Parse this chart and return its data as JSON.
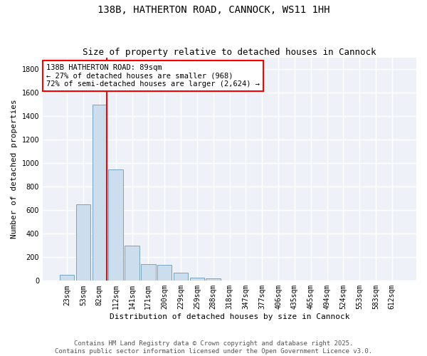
{
  "title": "138B, HATHERTON ROAD, CANNOCK, WS11 1HH",
  "subtitle": "Size of property relative to detached houses in Cannock",
  "xlabel": "Distribution of detached houses by size in Cannock",
  "ylabel": "Number of detached properties",
  "categories": [
    "23sqm",
    "53sqm",
    "82sqm",
    "112sqm",
    "141sqm",
    "171sqm",
    "200sqm",
    "229sqm",
    "259sqm",
    "288sqm",
    "318sqm",
    "347sqm",
    "377sqm",
    "406sqm",
    "435sqm",
    "465sqm",
    "494sqm",
    "524sqm",
    "553sqm",
    "583sqm",
    "612sqm"
  ],
  "values": [
    50,
    650,
    1500,
    950,
    300,
    140,
    135,
    70,
    25,
    20,
    5,
    2,
    2,
    1,
    1,
    1,
    1,
    1,
    1,
    1,
    1
  ],
  "bar_color": "#ccdded",
  "bar_edge_color": "#6699bb",
  "red_line_x": 2.43,
  "annotation_text": "138B HATHERTON ROAD: 89sqm\n← 27% of detached houses are smaller (968)\n72% of semi-detached houses are larger (2,624) →",
  "annotation_box_color": "white",
  "annotation_box_edge_color": "red",
  "vline_color": "red",
  "ylim": [
    0,
    1900
  ],
  "yticks": [
    0,
    200,
    400,
    600,
    800,
    1000,
    1200,
    1400,
    1600,
    1800
  ],
  "bg_color": "#eef2f8",
  "grid_color": "white",
  "footer_line1": "Contains HM Land Registry data © Crown copyright and database right 2025.",
  "footer_line2": "Contains public sector information licensed under the Open Government Licence v3.0.",
  "title_fontsize": 10,
  "subtitle_fontsize": 9,
  "axis_label_fontsize": 8,
  "tick_fontsize": 7,
  "annotation_fontsize": 7.5,
  "footer_fontsize": 6.5
}
